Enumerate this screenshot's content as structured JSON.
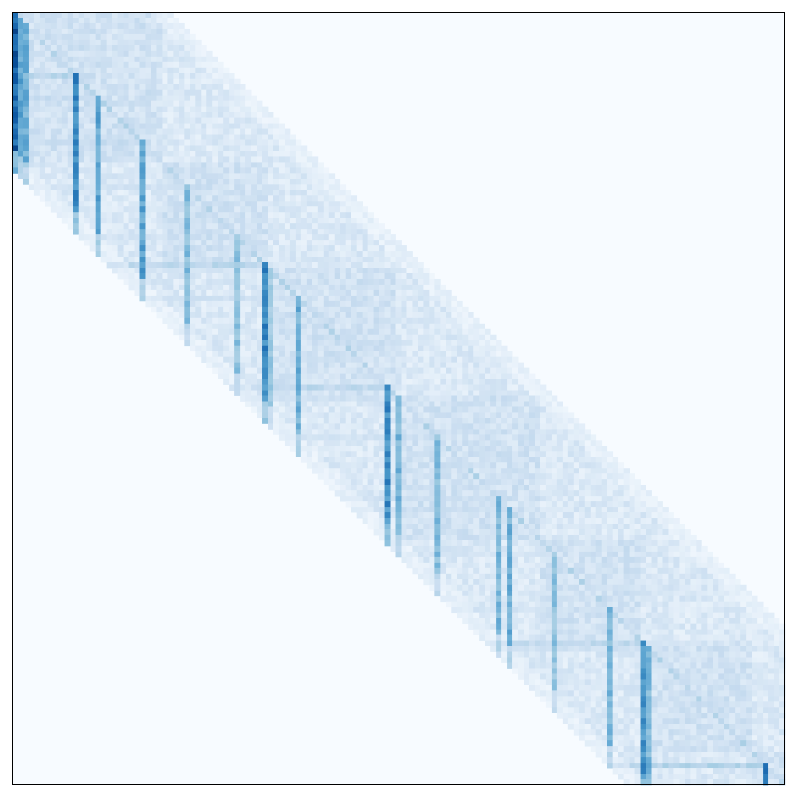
{
  "chart_data": {
    "type": "heatmap",
    "title": "",
    "xlabel": "",
    "ylabel": "",
    "shape": {
      "rows": 139,
      "cols": 139
    },
    "band_halfwidth": 28,
    "value_range": [
      0,
      1
    ],
    "background_value": 0,
    "colormap": {
      "name": "Blues",
      "stops": [
        "#f7fbff",
        "#deebf7",
        "#c6dbef",
        "#9ecae1",
        "#6baed6",
        "#4292c6",
        "#2171b5",
        "#08519c",
        "#08306b"
      ]
    },
    "axes_visible": false,
    "grid": false,
    "legend": "none",
    "band_base_value": 0.14,
    "band_noise": 0.07,
    "block_starts": [
      0,
      27,
      46,
      69,
      95,
      113,
      133
    ],
    "strong_columns": [
      {
        "index": 0,
        "value": 0.9
      },
      {
        "index": 1,
        "value": 0.6
      },
      {
        "index": 2,
        "value": 0.55
      },
      {
        "index": 11,
        "value": 0.75
      },
      {
        "index": 15,
        "value": 0.6
      },
      {
        "index": 23,
        "value": 0.62
      },
      {
        "index": 31,
        "value": 0.48
      },
      {
        "index": 40,
        "value": 0.45
      },
      {
        "index": 45,
        "value": 0.72
      },
      {
        "index": 46,
        "value": 0.42
      },
      {
        "index": 51,
        "value": 0.55
      },
      {
        "index": 67,
        "value": 0.7
      },
      {
        "index": 69,
        "value": 0.52
      },
      {
        "index": 76,
        "value": 0.48
      },
      {
        "index": 87,
        "value": 0.52
      },
      {
        "index": 89,
        "value": 0.55
      },
      {
        "index": 97,
        "value": 0.45
      },
      {
        "index": 107,
        "value": 0.5
      },
      {
        "index": 113,
        "value": 0.68
      },
      {
        "index": 114,
        "value": 0.52
      },
      {
        "index": 135,
        "value": 0.78
      }
    ]
  }
}
